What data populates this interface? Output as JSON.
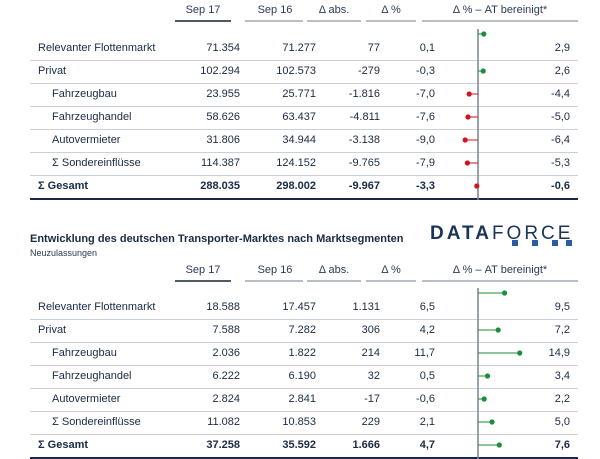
{
  "table1": {
    "headers": [
      "Sep 17",
      "Sep 16",
      "Δ abs.",
      "Δ %",
      "Δ % – AT bereinigt*"
    ],
    "rows": [
      {
        "label": "Relevanter Flottenmarkt",
        "sep17": "71.354",
        "sep16": "71.277",
        "abs": "77",
        "pct": "0,1",
        "adj": "2,9",
        "adj_value": 2.9,
        "indent": false,
        "total": false
      },
      {
        "label": "Privat",
        "sep17": "102.294",
        "sep16": "102.573",
        "abs": "-279",
        "pct": "-0,3",
        "adj": "2,6",
        "adj_value": 2.6,
        "indent": false,
        "total": false
      },
      {
        "label": "Fahrzeugbau",
        "sep17": "23.955",
        "sep16": "25.771",
        "abs": "-1.816",
        "pct": "-7,0",
        "adj": "-4,4",
        "adj_value": -4.4,
        "indent": true,
        "total": false
      },
      {
        "label": "Fahrzeughandel",
        "sep17": "58.626",
        "sep16": "63.437",
        "abs": "-4.811",
        "pct": "-7,6",
        "adj": "-5,0",
        "adj_value": -5.0,
        "indent": true,
        "total": false
      },
      {
        "label": "Autovermieter",
        "sep17": "31.806",
        "sep16": "34.944",
        "abs": "-3.138",
        "pct": "-9,0",
        "adj": "-6,4",
        "adj_value": -6.4,
        "indent": true,
        "total": false
      },
      {
        "label": "Σ Sondereinflüsse",
        "sep17": "114.387",
        "sep16": "124.152",
        "abs": "-9.765",
        "pct": "-7,9",
        "adj": "-5,3",
        "adj_value": -5.3,
        "indent": true,
        "total": false
      },
      {
        "label": "Σ Gesamt",
        "sep17": "288.035",
        "sep16": "298.002",
        "abs": "-9.967",
        "pct": "-3,3",
        "adj": "-0,6",
        "adj_value": -0.6,
        "indent": false,
        "total": true
      }
    ]
  },
  "section2": {
    "title": "Entwicklung des deutschen Transporter-Marktes nach Marktsegmenten",
    "subtitle": "Neuzulassungen",
    "logo_bold": "DATA",
    "logo_regular": "FORCE"
  },
  "table2": {
    "headers": [
      "Sep 17",
      "Sep 16",
      "Δ abs.",
      "Δ %",
      "Δ % – AT bereinigt*"
    ],
    "rows": [
      {
        "label": "Relevanter Flottenmarkt",
        "sep17": "18.588",
        "sep16": "17.457",
        "abs": "1.131",
        "pct": "6,5",
        "adj": "9,5",
        "adj_value": 9.5,
        "indent": false,
        "total": false
      },
      {
        "label": "Privat",
        "sep17": "7.588",
        "sep16": "7.282",
        "abs": "306",
        "pct": "4,2",
        "adj": "7,2",
        "adj_value": 7.2,
        "indent": false,
        "total": false
      },
      {
        "label": "Fahrzeugbau",
        "sep17": "2.036",
        "sep16": "1.822",
        "abs": "214",
        "pct": "11,7",
        "adj": "14,9",
        "adj_value": 14.9,
        "indent": true,
        "total": false
      },
      {
        "label": "Fahrzeughandel",
        "sep17": "6.222",
        "sep16": "6.190",
        "abs": "32",
        "pct": "0,5",
        "adj": "3,4",
        "adj_value": 3.4,
        "indent": true,
        "total": false
      },
      {
        "label": "Autovermieter",
        "sep17": "2.824",
        "sep16": "2.841",
        "abs": "-17",
        "pct": "-0,6",
        "adj": "2,2",
        "adj_value": 2.2,
        "indent": true,
        "total": false
      },
      {
        "label": "Σ Sondereinflüsse",
        "sep17": "11.082",
        "sep16": "10.853",
        "abs": "229",
        "pct": "2,1",
        "adj": "5,0",
        "adj_value": 5.0,
        "indent": true,
        "total": false
      },
      {
        "label": "Σ Gesamt",
        "sep17": "37.258",
        "sep16": "35.592",
        "abs": "1.666",
        "pct": "4,7",
        "adj": "7,6",
        "adj_value": 7.6,
        "indent": false,
        "total": true
      }
    ]
  },
  "colors": {
    "positive": "#1e8c3a",
    "negative": "#d4131f",
    "axis": "#7a8490",
    "text": "#1a2a44"
  }
}
